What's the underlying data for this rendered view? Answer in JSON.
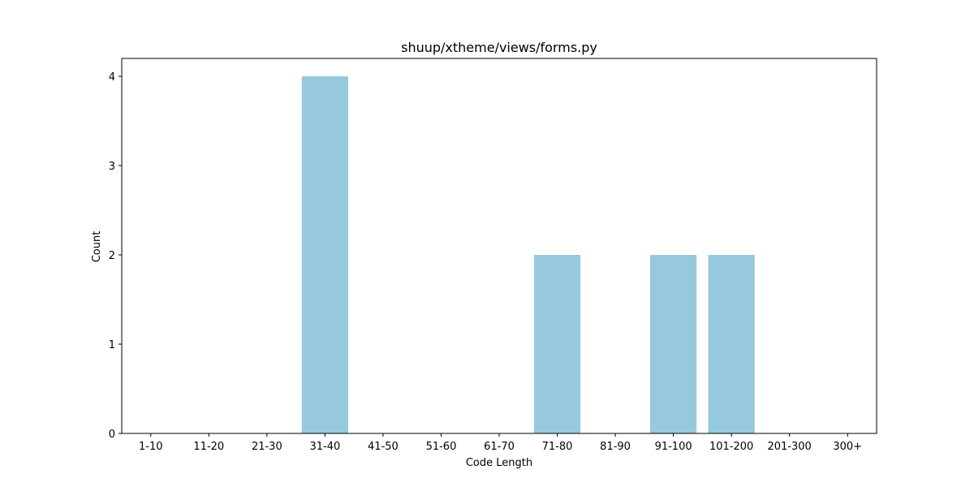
{
  "chart_data": {
    "type": "bar",
    "title": "shuup/xtheme/views/forms.py",
    "xlabel": "Code Length",
    "ylabel": "Count",
    "categories": [
      "1-10",
      "11-20",
      "21-30",
      "31-40",
      "41-50",
      "51-60",
      "61-70",
      "71-80",
      "81-90",
      "91-100",
      "101-200",
      "201-300",
      "300+"
    ],
    "values": [
      0,
      0,
      0,
      4,
      0,
      0,
      0,
      2,
      0,
      2,
      2,
      0,
      0
    ],
    "yticks": [
      "0",
      "1",
      "2",
      "3",
      "4"
    ],
    "ylim": [
      0,
      4.2
    ],
    "grid": false,
    "bar_color": "#96c9dd"
  }
}
